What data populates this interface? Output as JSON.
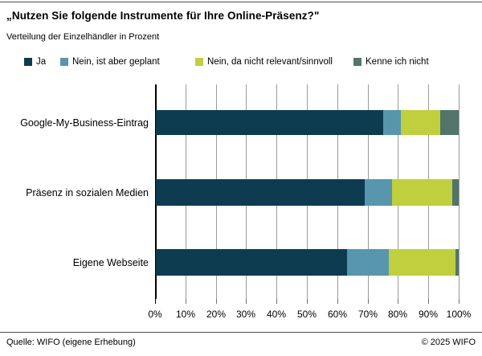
{
  "header": {
    "title": "„Nutzen Sie folgende Instrumente für Ihre Online-Präsenz?\"",
    "subtitle": "Verteilung der Einzelhändler in Prozent"
  },
  "colors": {
    "ja": "#0d3c50",
    "nein_geplant": "#5796ac",
    "nein_nicht_relevant": "#c0cf3e",
    "kenne_nicht": "#53746a",
    "gridline": "#9b9b9b",
    "axis": "#000000"
  },
  "chart_data": {
    "type": "bar",
    "orientation": "horizontal",
    "stacked": true,
    "title": "„Nutzen Sie folgende Instrumente für Ihre Online-Präsenz?\"",
    "subtitle": "Verteilung der Einzelhändler in Prozent",
    "categories": [
      "Google-My-Business-Eintrag",
      "Präsenz in sozialen Medien",
      "Eigene Webseite"
    ],
    "series": [
      {
        "name": "Ja",
        "slug": "ja",
        "color": "#0d3c50",
        "values": [
          75,
          69,
          63
        ]
      },
      {
        "name": "Nein, ist aber geplant",
        "slug": "nein-ist-aber-geplant",
        "color": "#5796ac",
        "values": [
          6,
          9,
          14
        ]
      },
      {
        "name": "Nein, da nicht relevant/sinnvoll",
        "slug": "nein-da-nicht-relevant-sinnvoll",
        "color": "#c0cf3e",
        "values": [
          13,
          20,
          22
        ]
      },
      {
        "name": "Kenne ich nicht",
        "slug": "kenne-ich-nicht",
        "color": "#53746a",
        "values": [
          6,
          2,
          1
        ]
      }
    ],
    "x_ticks": [
      "0%",
      "10%",
      "20%",
      "30%",
      "40%",
      "50%",
      "60%",
      "70%",
      "80%",
      "90%",
      "100%"
    ],
    "xlim": [
      0,
      100
    ],
    "grid": true,
    "legend_position": "top"
  },
  "footer": {
    "source": "Quelle: WIFO (eigene Erhebung)",
    "copyright": "© 2025 WIFO"
  }
}
